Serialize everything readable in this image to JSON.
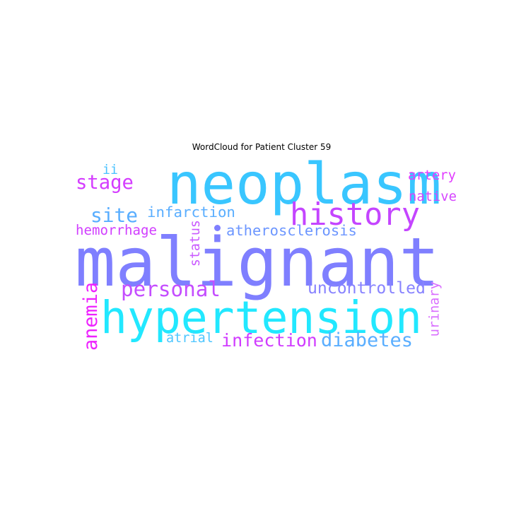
{
  "title": "WordCloud for Patient Cluster 59",
  "words": [
    {
      "text": "malignant",
      "color": "#7f7fff",
      "orientation": "horizontal"
    },
    {
      "text": "neoplasm",
      "color": "#39c6ff",
      "orientation": "horizontal"
    },
    {
      "text": "hypertension",
      "color": "#22e8ff",
      "orientation": "horizontal"
    },
    {
      "text": "history",
      "color": "#c445ff",
      "orientation": "horizontal"
    },
    {
      "text": "personal",
      "color": "#c44dff",
      "orientation": "horizontal"
    },
    {
      "text": "stage",
      "color": "#d43dff",
      "orientation": "horizontal"
    },
    {
      "text": "site",
      "color": "#59aeff",
      "orientation": "horizontal"
    },
    {
      "text": "diabetes",
      "color": "#5aaeff",
      "orientation": "horizontal"
    },
    {
      "text": "infection",
      "color": "#d03cff",
      "orientation": "horizontal"
    },
    {
      "text": "anemia",
      "color": "#ee22ff",
      "orientation": "vertical"
    },
    {
      "text": "uncontrolled",
      "color": "#8883ff",
      "orientation": "horizontal"
    },
    {
      "text": "atherosclerosis",
      "color": "#6c96ff",
      "orientation": "horizontal"
    },
    {
      "text": "infarction",
      "color": "#5aaeff",
      "orientation": "horizontal"
    },
    {
      "text": "hemorrhage",
      "color": "#d13fff",
      "orientation": "horizontal"
    },
    {
      "text": "artery",
      "color": "#e23dff",
      "orientation": "horizontal"
    },
    {
      "text": "native",
      "color": "#d546ff",
      "orientation": "horizontal"
    },
    {
      "text": "ii",
      "color": "#48c2ff",
      "orientation": "horizontal"
    },
    {
      "text": "status",
      "color": "#c958ff",
      "orientation": "vertical"
    },
    {
      "text": "urinary",
      "color": "#d96dff",
      "orientation": "vertical"
    },
    {
      "text": "atrial",
      "color": "#4ec6ff",
      "orientation": "horizontal"
    }
  ],
  "dot_color": "#7f7fff"
}
